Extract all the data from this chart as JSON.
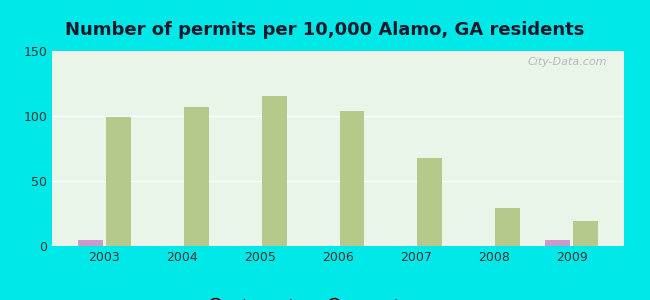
{
  "title": "Number of permits per 10,000 Alamo, GA residents",
  "years": [
    2003,
    2004,
    2005,
    2006,
    2007,
    2008,
    2009
  ],
  "alamo_city": [
    5,
    0,
    0,
    0,
    0,
    0,
    5
  ],
  "georgia_avg": [
    99,
    107,
    115,
    104,
    68,
    29,
    19
  ],
  "alamo_color": "#cc99cc",
  "georgia_color": "#b5c98a",
  "background_outer": "#00e8e8",
  "background_inner_top": "#e8f5e8",
  "background_inner_bottom": "#d0f0d0",
  "ylim": [
    0,
    150
  ],
  "yticks": [
    0,
    50,
    100,
    150
  ],
  "bar_width": 0.32,
  "legend_labels": [
    "Alamo city",
    "Georgia average"
  ],
  "title_fontsize": 13,
  "watermark": "City-Data.com"
}
